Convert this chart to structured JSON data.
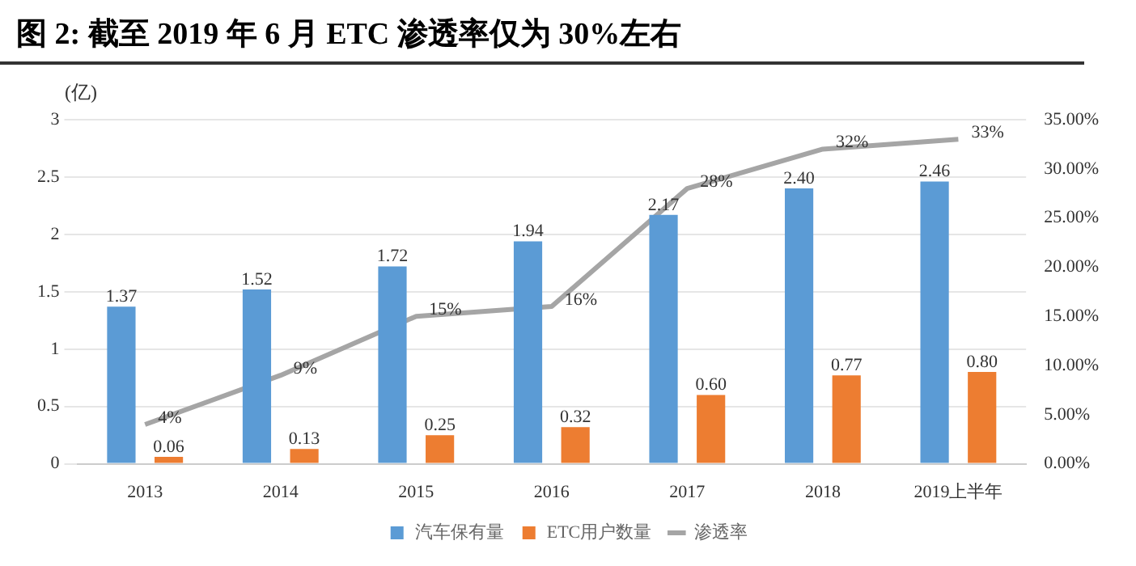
{
  "chart_data": {
    "type": "bar",
    "title": "图 2: 截至 2019 年 6 月 ETC 渗透率仅为 30%左右",
    "ylabel": "(亿)",
    "categories": [
      "2013",
      "2014",
      "2015",
      "2016",
      "2017",
      "2018",
      "2019上半年"
    ],
    "series": [
      {
        "name": "汽车保有量",
        "color": "#5b9bd5",
        "values": [
          1.37,
          1.52,
          1.72,
          1.94,
          2.17,
          2.4,
          2.46
        ],
        "value_labels": [
          "1.37",
          "1.52",
          "1.72",
          "1.94",
          "2.17",
          "2.40",
          "2.46"
        ]
      },
      {
        "name": "ETC用户数量",
        "color": "#ed7d31",
        "values": [
          0.06,
          0.13,
          0.25,
          0.32,
          0.6,
          0.77,
          0.8
        ],
        "value_labels": [
          "0.06",
          "0.13",
          "0.25",
          "0.32",
          "0.60",
          "0.77",
          "0.80"
        ]
      },
      {
        "name": "渗透率",
        "type": "line",
        "axis": "y2",
        "color": "#a5a5a5",
        "values": [
          4,
          9,
          15,
          16,
          28,
          32,
          33
        ],
        "value_labels": [
          "4%",
          "9%",
          "15%",
          "16%",
          "28%",
          "32%",
          "33%"
        ]
      }
    ],
    "ylim": [
      0,
      3
    ],
    "yticks": [
      0,
      0.5,
      1,
      1.5,
      2,
      2.5,
      3
    ],
    "y2lim": [
      0,
      35
    ],
    "y2ticks": [
      {
        "value": 0,
        "label": "0.00%"
      },
      {
        "value": 5,
        "label": "5.00%"
      },
      {
        "value": 10,
        "label": "10.00%"
      },
      {
        "value": 15,
        "label": "15.00%"
      },
      {
        "value": 20,
        "label": "20.00%"
      },
      {
        "value": 25,
        "label": "25.00%"
      },
      {
        "value": 30,
        "label": "30.00%"
      },
      {
        "value": 35,
        "label": "35.00%"
      }
    ],
    "grid": "y",
    "legend": "bottom",
    "marker": "none",
    "line_style": "solid"
  }
}
